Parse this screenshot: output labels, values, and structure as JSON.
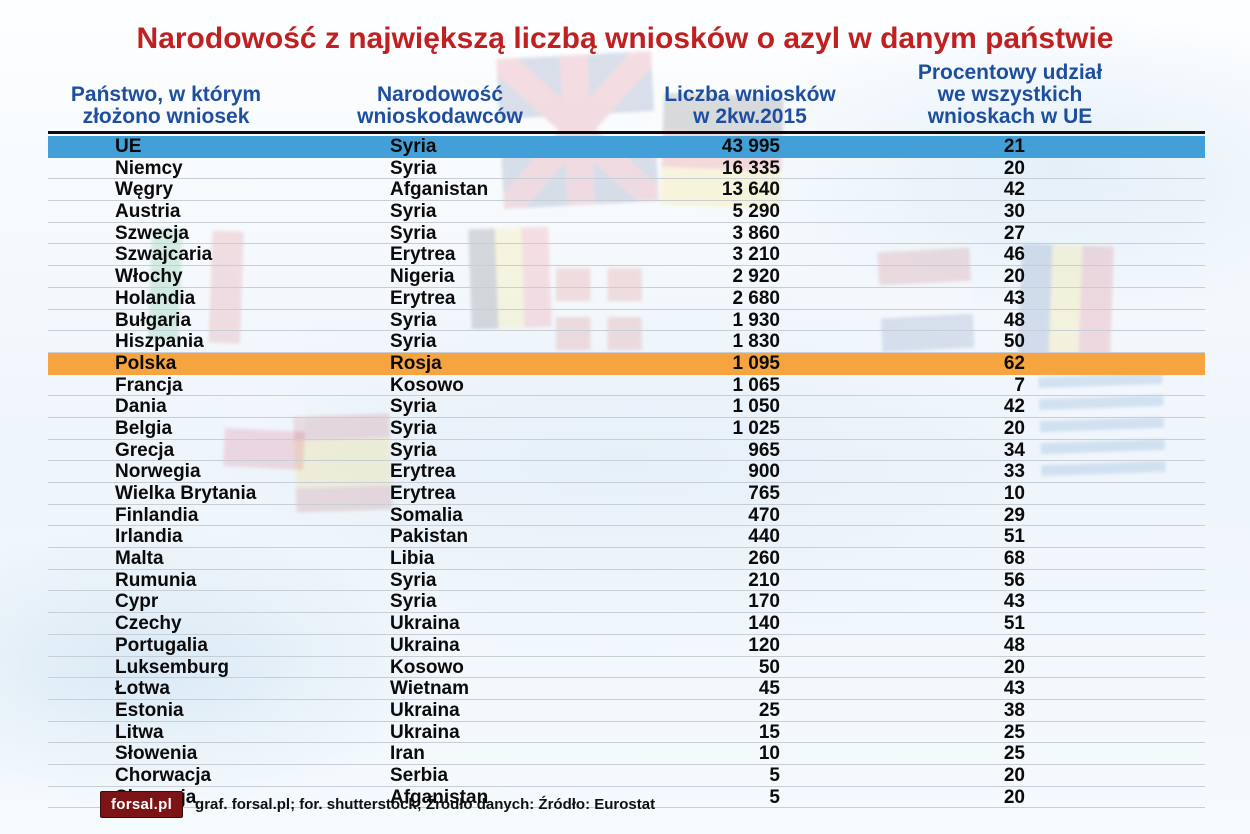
{
  "title": "Narodowość z największą liczbą wniosków o azyl w danym państwie",
  "header_columns": [
    {
      "lines": [
        "Państwo, w którym",
        "złożono wniosek"
      ]
    },
    {
      "lines": [
        "Narodowość",
        "wnioskodawców"
      ]
    },
    {
      "lines": [
        "Liczba wniosków",
        "w 2kw.2015"
      ]
    },
    {
      "lines": [
        "Procentowy udział",
        "we wszystkich",
        "wnioskach w UE"
      ]
    }
  ],
  "chart_data": {
    "type": "table",
    "title": "Narodowość z największą liczbą wniosków o azyl w danym państwie",
    "columns": [
      "Państwo, w którym złożono wniosek",
      "Narodowość wnioskodawców",
      "Liczba wniosków w 2kw.2015",
      "Procentowy udział we wszystkich wnioskach w UE"
    ],
    "rows": [
      {
        "country": "UE",
        "nationality": "Syria",
        "count": "43 995",
        "percent": "21",
        "highlight": "blue"
      },
      {
        "country": "Niemcy",
        "nationality": "Syria",
        "count": "16 335",
        "percent": "20"
      },
      {
        "country": "Węgry",
        "nationality": "Afganistan",
        "count": "13 640",
        "percent": "42"
      },
      {
        "country": "Austria",
        "nationality": "Syria",
        "count": "5 290",
        "percent": "30"
      },
      {
        "country": "Szwecja",
        "nationality": "Syria",
        "count": "3 860",
        "percent": "27"
      },
      {
        "country": "Szwajcaria",
        "nationality": "Erytrea",
        "count": "3 210",
        "percent": "46"
      },
      {
        "country": "Włochy",
        "nationality": "Nigeria",
        "count": "2 920",
        "percent": "20"
      },
      {
        "country": "Holandia",
        "nationality": "Erytrea",
        "count": "2 680",
        "percent": "43"
      },
      {
        "country": "Bułgaria",
        "nationality": "Syria",
        "count": "1 930",
        "percent": "48"
      },
      {
        "country": "Hiszpania",
        "nationality": "Syria",
        "count": "1 830",
        "percent": "50"
      },
      {
        "country": "Polska",
        "nationality": "Rosja",
        "count": "1 095",
        "percent": "62",
        "highlight": "orange"
      },
      {
        "country": "Francja",
        "nationality": "Kosowo",
        "count": "1 065",
        "percent": "7"
      },
      {
        "country": "Dania",
        "nationality": "Syria",
        "count": "1 050",
        "percent": "42"
      },
      {
        "country": "Belgia",
        "nationality": "Syria",
        "count": "1 025",
        "percent": "20"
      },
      {
        "country": "Grecja",
        "nationality": "Syria",
        "count": "965",
        "percent": "34"
      },
      {
        "country": "Norwegia",
        "nationality": "Erytrea",
        "count": "900",
        "percent": "33"
      },
      {
        "country": "Wielka Brytania",
        "nationality": "Erytrea",
        "count": "765",
        "percent": "10"
      },
      {
        "country": "Finlandia",
        "nationality": "Somalia",
        "count": "470",
        "percent": "29"
      },
      {
        "country": "Irlandia",
        "nationality": "Pakistan",
        "count": "440",
        "percent": "51"
      },
      {
        "country": "Malta",
        "nationality": "Libia",
        "count": "260",
        "percent": "68"
      },
      {
        "country": "Rumunia",
        "nationality": "Syria",
        "count": "210",
        "percent": "56"
      },
      {
        "country": "Cypr",
        "nationality": "Syria",
        "count": "170",
        "percent": "43"
      },
      {
        "country": "Czechy",
        "nationality": "Ukraina",
        "count": "140",
        "percent": "51"
      },
      {
        "country": "Portugalia",
        "nationality": "Ukraina",
        "count": "120",
        "percent": "48"
      },
      {
        "country": "Luksemburg",
        "nationality": "Kosowo",
        "count": "50",
        "percent": "20"
      },
      {
        "country": "Łotwa",
        "nationality": "Wietnam",
        "count": "45",
        "percent": "43"
      },
      {
        "country": "Estonia",
        "nationality": "Ukraina",
        "count": "25",
        "percent": "38"
      },
      {
        "country": "Litwa",
        "nationality": "Ukraina",
        "count": "15",
        "percent": "25"
      },
      {
        "country": "Słowenia",
        "nationality": "Iran",
        "count": "10",
        "percent": "25"
      },
      {
        "country": "Chorwacja",
        "nationality": "Serbia",
        "count": "5",
        "percent": "20"
      },
      {
        "country": "Słowacja",
        "nationality": "Afganistan",
        "count": "5",
        "percent": "20"
      }
    ]
  },
  "footer": {
    "logo_text": "forsal.pl",
    "credit": "graf. forsal.pl; for. shutterstock;  Źródło danych:  Źródło: Eurostat"
  },
  "colors": {
    "title_red": "#c02020",
    "header_blue": "#1e4f9e",
    "row_highlight_blue": "#429fd7",
    "row_highlight_orange": "#f5a440",
    "logo_background": "#7c1416",
    "row_separator": "#c7ced6"
  }
}
